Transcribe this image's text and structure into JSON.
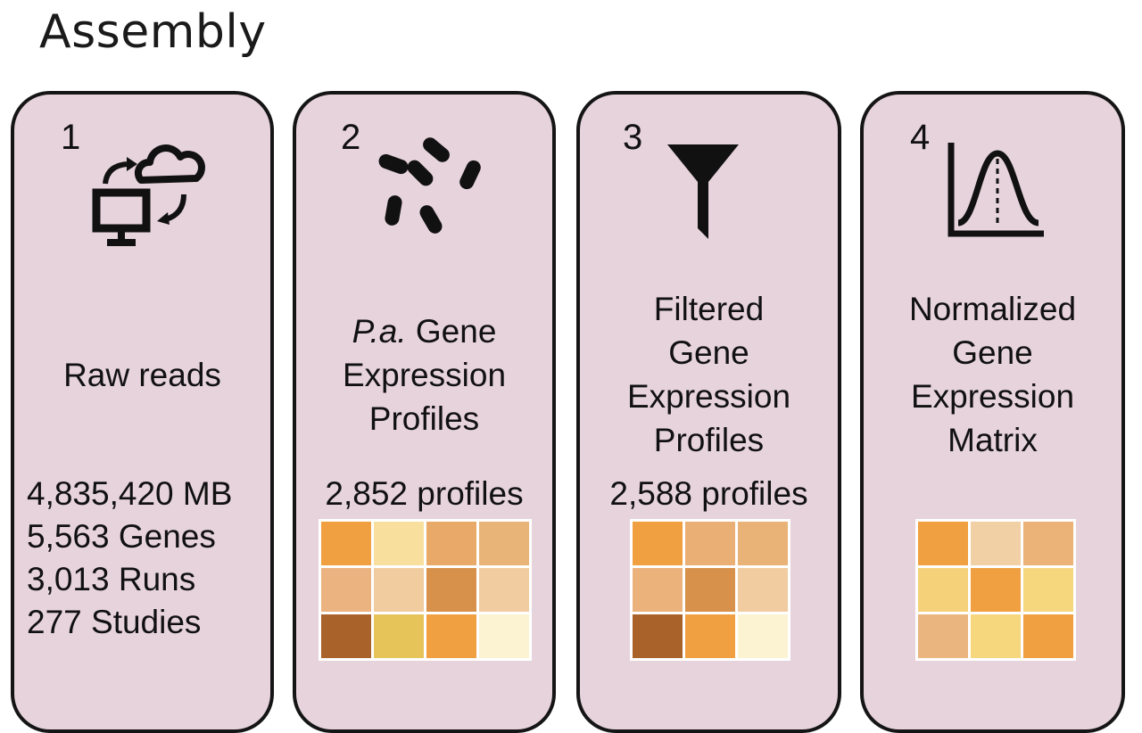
{
  "title": "Assembly",
  "cards": [
    {
      "number": "1",
      "icon": "computer-cloud-sync-icon",
      "label_lines": [
        "Raw reads"
      ],
      "stats": [
        "4,835,420 MB",
        "5,563 Genes",
        "3,013 Runs",
        "277 Studies"
      ]
    },
    {
      "number": "2",
      "icon": "bacteria-icon",
      "label_italic": "P.a.",
      "label_first_rest": " Gene",
      "label_lines": [
        "Expression",
        "Profiles"
      ],
      "count": "2,852 profiles",
      "heatmap": {
        "columns": 4,
        "colors": [
          "#f0a040",
          "#f8df9e",
          "#e9aa69",
          "#e9b477",
          "#ebb37f",
          "#f1cc9f",
          "#d8914a",
          "#f1cca0",
          "#a9622a",
          "#e6c45a",
          "#f0a040",
          "#fcf3d2"
        ]
      }
    },
    {
      "number": "3",
      "icon": "funnel-filter-icon",
      "label_lines": [
        "Filtered",
        "Gene",
        "Expression",
        "Profiles"
      ],
      "count": "2,588 profiles",
      "heatmap": {
        "columns": 3,
        "colors": [
          "#f0a040",
          "#eaaf75",
          "#e9b277",
          "#ebb27c",
          "#d8914a",
          "#f1cca0",
          "#a9622a",
          "#f0a040",
          "#fcf3d2"
        ]
      }
    },
    {
      "number": "4",
      "icon": "normal-distribution-chart-icon",
      "label_lines": [
        "Normalized",
        "Gene",
        "Expression",
        "Matrix"
      ],
      "heatmap": {
        "columns": 3,
        "colors": [
          "#f0a040",
          "#f2d0a6",
          "#ebb377",
          "#f5d27a",
          "#f0a040",
          "#f6d77e",
          "#ebb57f",
          "#f6d77e",
          "#f0a040"
        ]
      }
    }
  ]
}
